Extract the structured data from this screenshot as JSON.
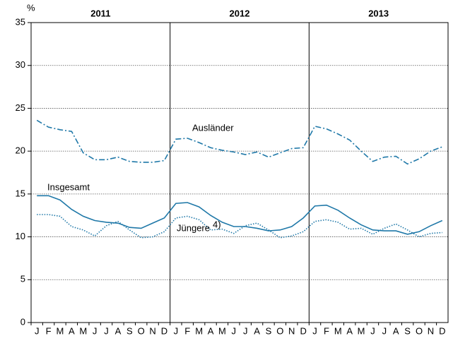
{
  "chart_data": {
    "type": "line",
    "y_unit": "%",
    "years": [
      "2011",
      "2012",
      "2013"
    ],
    "categories": [
      "J",
      "F",
      "M",
      "A",
      "M",
      "J",
      "J",
      "A",
      "S",
      "O",
      "N",
      "D",
      "J",
      "F",
      "M",
      "A",
      "M",
      "J",
      "J",
      "A",
      "S",
      "O",
      "N",
      "D",
      "J",
      "F",
      "M",
      "A",
      "M",
      "J",
      "J",
      "A",
      "S",
      "O",
      "N",
      "D"
    ],
    "ylim": [
      0,
      35
    ],
    "yticks": [
      0,
      5,
      10,
      15,
      20,
      25,
      30,
      35
    ],
    "grid": true,
    "series": [
      {
        "name": "Ausländer",
        "color": "#1f78a8",
        "linestyle": "dashdot",
        "values": [
          23.6,
          22.8,
          22.5,
          22.3,
          19.8,
          19.0,
          19.0,
          19.3,
          18.8,
          18.7,
          18.7,
          18.9,
          21.4,
          21.5,
          21.0,
          20.4,
          20.1,
          19.9,
          19.6,
          19.9,
          19.3,
          19.8,
          20.3,
          20.4,
          22.9,
          22.6,
          22.0,
          21.3,
          20.0,
          18.8,
          19.3,
          19.4,
          18.5,
          19.1,
          20.0,
          20.5
        ]
      },
      {
        "name": "Insgesamt",
        "color": "#1f78a8",
        "linestyle": "solid",
        "values": [
          14.8,
          14.8,
          14.3,
          13.2,
          12.4,
          11.9,
          11.7,
          11.6,
          11.1,
          11.0,
          11.6,
          12.2,
          13.9,
          14.0,
          13.5,
          12.5,
          11.7,
          11.2,
          11.2,
          11.0,
          10.7,
          10.8,
          11.2,
          12.2,
          13.6,
          13.7,
          13.1,
          12.2,
          11.4,
          10.8,
          10.7,
          10.7,
          10.3,
          10.6,
          11.3,
          11.9
        ]
      },
      {
        "name": "Jüngere",
        "name_note": "4)",
        "color": "#1f78a8",
        "linestyle": "dotted",
        "values": [
          12.6,
          12.6,
          12.4,
          11.2,
          10.8,
          10.1,
          11.3,
          11.8,
          10.8,
          9.9,
          10.0,
          10.6,
          12.2,
          12.4,
          12.0,
          10.8,
          10.9,
          10.4,
          11.3,
          11.6,
          10.8,
          9.9,
          10.1,
          10.6,
          11.8,
          12.0,
          11.7,
          10.9,
          11.0,
          10.3,
          11.0,
          11.5,
          10.8,
          10.0,
          10.4,
          10.5
        ]
      }
    ]
  }
}
